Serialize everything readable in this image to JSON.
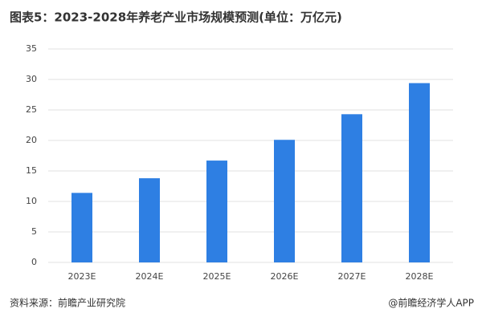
{
  "chart_data": {
    "type": "bar",
    "title": "图表5：2023-2028年养老产业市场规模预测(单位：万亿元)",
    "categories": [
      "2023E",
      "2024E",
      "2025E",
      "2026E",
      "2027E",
      "2028E"
    ],
    "values": [
      11.4,
      13.8,
      16.7,
      20.1,
      24.3,
      29.4
    ],
    "color": "#2e7fe3",
    "ylim": [
      0,
      35
    ],
    "yticks": [
      0,
      5,
      10,
      15,
      20,
      25,
      30,
      35
    ],
    "grid": true,
    "source": "资料来源：前瞻产业研究院",
    "credit": "@前瞻经济学人APP"
  }
}
